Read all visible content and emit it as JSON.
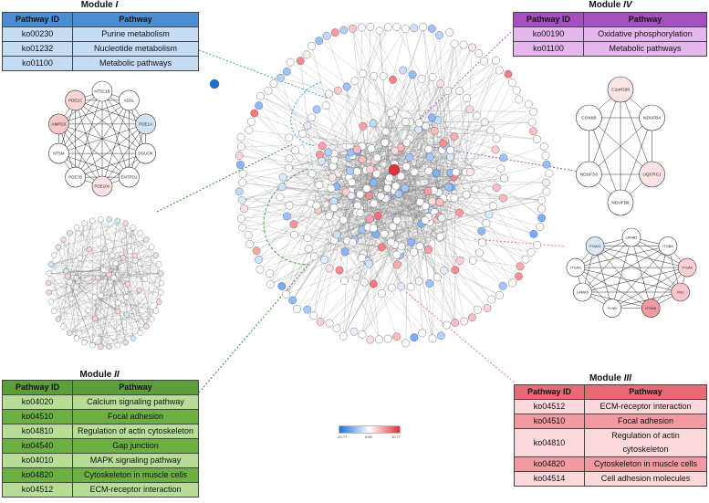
{
  "colors": {
    "m1_header": "#4a8fd4",
    "m1_row": "#c5dcf3",
    "m4_header": "#a64fc0",
    "m4_row": "#e6b7ee",
    "m2_header": "#5b9e3a",
    "m2_row_dark": "#6cb044",
    "m2_row_light": "#b8dd96",
    "m3_header": "#e56b76",
    "m3_row_dark": "#f19aa2",
    "m3_row_light": "#fbd8dc",
    "edge": "#8a8a8a",
    "node_border": "#555555"
  },
  "module1": {
    "title_prefix": "Module",
    "title_num": "I",
    "col1": "Pathway ID",
    "col2": "Pathway",
    "rows": [
      {
        "id": "ko00230",
        "name": "Purine metabolism"
      },
      {
        "id": "ko01232",
        "name": "Nucleotide metabolism"
      },
      {
        "id": "ko01100",
        "name": "Metabolic pathways"
      }
    ],
    "nodes": [
      "NT5C1B",
      "ADSL",
      "PDE1A",
      "DGUOK",
      "ENTPD1",
      "PDE10A",
      "PDE7B",
      "NT5M",
      "AMPD3",
      "PDE1C"
    ]
  },
  "module4": {
    "title_prefix": "Module",
    "title_num": "IV",
    "col1": "Pathway ID",
    "col2": "Pathway",
    "rows": [
      {
        "id": "ko00190",
        "name": "Oxidative phosphorylation"
      },
      {
        "id": "ko01100",
        "name": "Metabolic pathways"
      }
    ],
    "nodes": [
      "C1orf198",
      "NDUFB4",
      "UQCRC1",
      "NDUFB6",
      "NDUFS6",
      "COX6B"
    ]
  },
  "module2": {
    "title_prefix": "Module",
    "title_num": "II",
    "col1": "Pathway ID",
    "col2": "Pathway",
    "rows": [
      {
        "id": "ko04020",
        "name": "Calcium signaling pathway"
      },
      {
        "id": "ko04510",
        "name": "Focal adhesion"
      },
      {
        "id": "ko04810",
        "name": "Regulation of actin cytoskeleton"
      },
      {
        "id": "ko04540",
        "name": "Gap junction"
      },
      {
        "id": "ko04010",
        "name": "MAPK signaling pathway"
      },
      {
        "id": "ko04820",
        "name": "Cytoskeleton in muscle cells"
      },
      {
        "id": "ko04512",
        "name": "ECM-receptor interaction"
      }
    ]
  },
  "module3": {
    "title_prefix": "Module",
    "title_num": "III",
    "col1": "Pathway ID",
    "col2": "Pathway",
    "rows": [
      {
        "id": "ko04512",
        "name": "ECM-receptor interaction"
      },
      {
        "id": "ko04510",
        "name": "Focal adhesion"
      },
      {
        "id": "ko04810",
        "name": "Regulation of actin cytoskeleton"
      },
      {
        "id": "ko04820",
        "name": "Cytoskeleton in muscle cells"
      },
      {
        "id": "ko04514",
        "name": "Cell adhesion molecules"
      }
    ],
    "nodes": [
      "LAMB1",
      "ITGB6",
      "ITGA9",
      "FN1",
      "ITGB8",
      "FLNB",
      "LAMA5",
      "ITGA4",
      "ITGA11"
    ]
  },
  "legend": {
    "min": "-10.77",
    "mid": "0.00",
    "max": "10.77"
  }
}
